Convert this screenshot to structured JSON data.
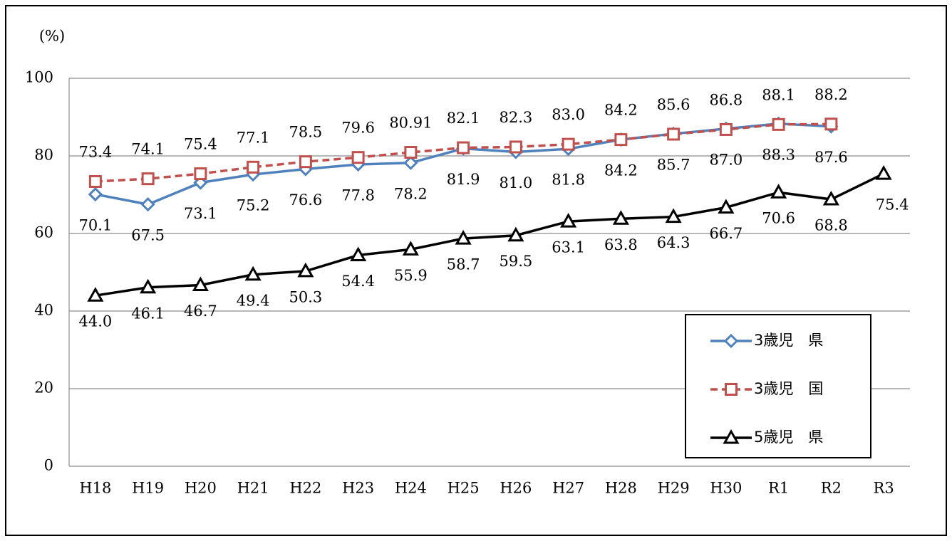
{
  "chart_data": {
    "type": "line",
    "y_axis_label": "(%)",
    "categories": [
      "H18",
      "H19",
      "H20",
      "H21",
      "H22",
      "H23",
      "H24",
      "H25",
      "H26",
      "H27",
      "H28",
      "H29",
      "H30",
      "R1",
      "R2",
      "R3"
    ],
    "series": [
      {
        "name": "3歳児　県",
        "color": "#4f81bd",
        "marker": "diamond",
        "line_style": "solid",
        "values": [
          70.1,
          67.5,
          73.1,
          75.2,
          76.6,
          77.8,
          78.2,
          81.9,
          81.0,
          81.8,
          84.2,
          85.7,
          87.0,
          88.3,
          87.6,
          null
        ],
        "value_labels": [
          "70.1",
          "67.5",
          "73.1",
          "75.2",
          "76.6",
          "77.8",
          "78.2",
          "81.9",
          "81.0",
          "81.8",
          "84.2",
          "85.7",
          "87.0",
          "88.3",
          "87.6",
          null
        ]
      },
      {
        "name": "3歳児　国",
        "color": "#c0504d",
        "marker": "square",
        "line_style": "dashed",
        "values": [
          73.4,
          74.1,
          75.4,
          77.1,
          78.5,
          79.6,
          80.91,
          82.1,
          82.3,
          83.0,
          84.2,
          85.6,
          86.8,
          88.1,
          88.2,
          null
        ],
        "value_labels": [
          "73.4",
          "74.1",
          "75.4",
          "77.1",
          "78.5",
          "79.6",
          "80.91",
          "82.1",
          "82.3",
          "83.0",
          "84.2",
          "85.6",
          "86.8",
          "88.1",
          "88.2",
          null
        ]
      },
      {
        "name": "5歳児　県",
        "color": "#000000",
        "marker": "triangle",
        "line_style": "solid",
        "values": [
          44.0,
          46.1,
          46.7,
          49.4,
          50.3,
          54.4,
          55.9,
          58.7,
          59.5,
          63.1,
          63.8,
          64.3,
          66.7,
          70.6,
          68.8,
          75.4
        ],
        "value_labels": [
          "44.0",
          "46.1",
          "46.7",
          "49.4",
          "50.3",
          "54.4",
          "55.9",
          "58.7",
          "59.5",
          "63.1",
          "63.8",
          "64.3",
          "66.7",
          "70.6",
          "68.8",
          "75.4"
        ]
      }
    ],
    "ylim": [
      0,
      100
    ],
    "yticks": [
      0,
      20,
      40,
      60,
      80,
      100
    ],
    "grid": true,
    "legend": "lower-right"
  }
}
